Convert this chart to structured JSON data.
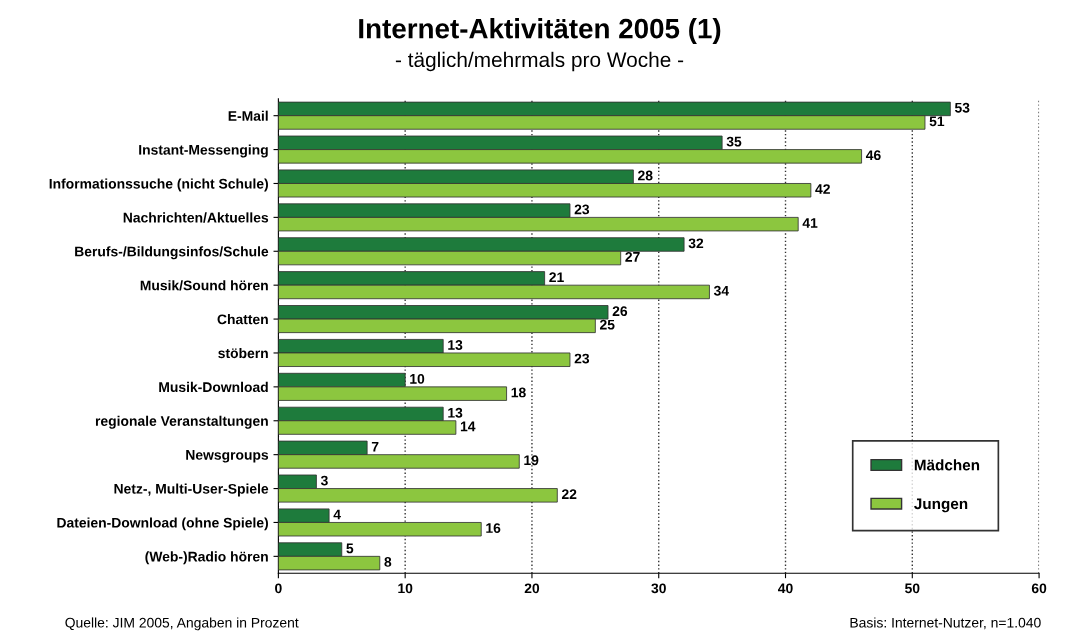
{
  "chart_data": {
    "type": "bar",
    "orientation": "horizontal",
    "title": "Internet-Aktivitäten 2005 (1)",
    "subtitle": "- täglich/mehrmals pro Woche -",
    "categories": [
      "E-Mail",
      "Instant-Messenging",
      "Informationssuche (nicht Schule)",
      "Nachrichten/Aktuelles",
      "Berufs-/Bildungsinfos/Schule",
      "Musik/Sound hören",
      "Chatten",
      "stöbern",
      "Musik-Download",
      "regionale Veranstaltungen",
      "Newsgroups",
      "Netz-, Multi-User-Spiele",
      "Dateien-Download (ohne Spiele)",
      "(Web-)Radio hören"
    ],
    "series": [
      {
        "name": "Mädchen",
        "color": "#1e7b3c",
        "values": [
          53,
          35,
          28,
          23,
          32,
          21,
          26,
          13,
          10,
          13,
          7,
          3,
          4,
          5
        ]
      },
      {
        "name": "Jungen",
        "color": "#8cc63f",
        "values": [
          51,
          46,
          42,
          41,
          27,
          34,
          25,
          23,
          18,
          14,
          19,
          22,
          16,
          8
        ]
      }
    ],
    "xlim": [
      0,
      60
    ],
    "xticks": [
      0,
      10,
      20,
      30,
      40,
      50,
      60
    ],
    "grid": "x",
    "legend": "bottom right",
    "data_labels": true,
    "annotations": [
      "Quelle: JIM 2005, Angaben in Prozent",
      "Basis: Internet-Nutzer, n=1.040"
    ]
  }
}
